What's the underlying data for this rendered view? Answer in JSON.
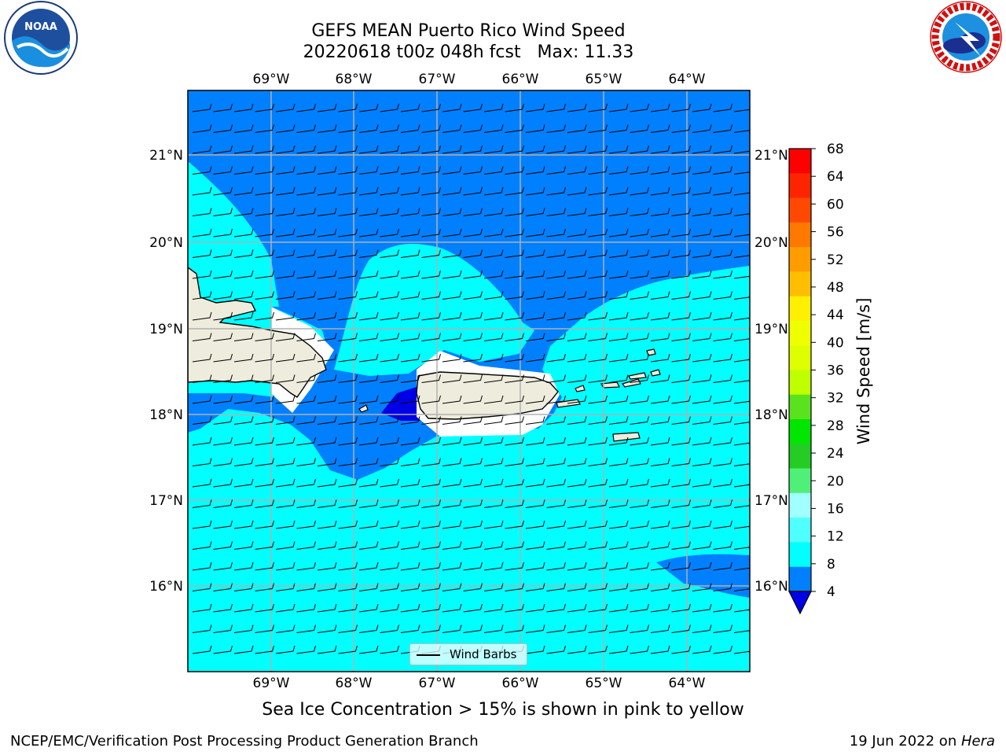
{
  "header": {
    "title_line1": "GEFS MEAN Puerto Rico Wind Speed",
    "title_line2": "20220618 t00z 048h fcst   Max: 11.33"
  },
  "logos": {
    "left": {
      "name": "NOAA",
      "ring_text": "NATIONAL OCEANIC AND ATMOSPHERIC ADMINISTRATION · U.S. DEPARTMENT OF COMMERCE"
    },
    "right": {
      "name": "NATIONAL WEATHER SERVICE"
    }
  },
  "map": {
    "lon_labels": [
      "69°W",
      "68°W",
      "67°W",
      "66°W",
      "65°W",
      "64°W"
    ],
    "lat_labels": [
      "21°N",
      "20°N",
      "19°N",
      "18°N",
      "17°N",
      "16°N"
    ],
    "land_color": "#eeecdc",
    "fill_colors": {
      "4-8": "#0080ff",
      "8-12": "#00ffff",
      "below-4": "#0000e6"
    },
    "legend_label": "Wind Barbs"
  },
  "colorbar": {
    "label": "Wind Speed [m/s]",
    "ticks": [
      "68",
      "64",
      "60",
      "56",
      "52",
      "48",
      "44",
      "40",
      "36",
      "32",
      "28",
      "24",
      "20",
      "16",
      "12",
      "8",
      "4"
    ],
    "colors_top_to_bottom": [
      "#ff0000",
      "#ff2400",
      "#ff4800",
      "#ff7800",
      "#ff9c00",
      "#ffbf00",
      "#ffef00",
      "#f0ff00",
      "#ddff00",
      "#c0ff00",
      "#5ae21e",
      "#00e600",
      "#24cc24",
      "#50f078",
      "#a0ffff",
      "#50ffff",
      "#00ffff",
      "#0080ff"
    ],
    "extend_color": "#0000e6"
  },
  "subtitle": "Sea Ice Concentration > 15% is shown in pink to yellow",
  "footer": {
    "left": "NCEP/EMC/Verification Post Processing Product Generation Branch",
    "right_date": "19 Jun 2022 on ",
    "right_machine": "Hera"
  }
}
